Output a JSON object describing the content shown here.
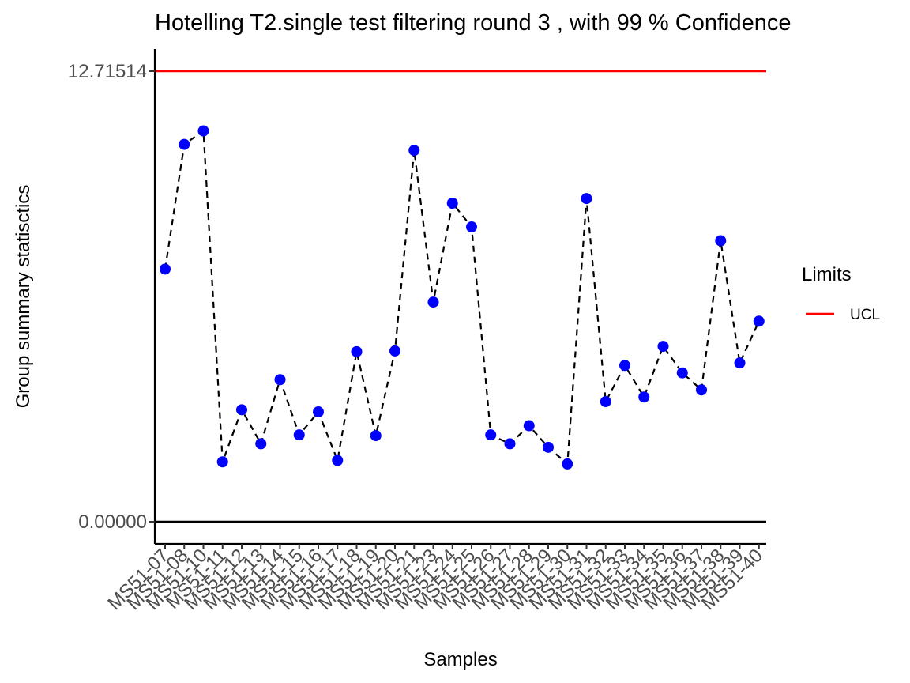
{
  "chart_data": {
    "type": "line",
    "title": "Hotelling  T2.single  test filtering round  3 , with  99 % Confidence",
    "xlabel": "Samples",
    "ylabel": "Group summary statisctics",
    "categories": [
      "MS51-07",
      "MS51-08",
      "MS51-10",
      "MS51-11",
      "MS51-12",
      "MS51-13",
      "MS51-14",
      "MS51-15",
      "MS51-16",
      "MS51-17",
      "MS51-18",
      "MS51-19",
      "MS51-20",
      "MS51-21",
      "MS51-23",
      "MS51-24",
      "MS51-25",
      "MS51-26",
      "MS51-27",
      "MS51-28",
      "MS51-29",
      "MS51-30",
      "MS51-31",
      "MS51-32",
      "MS51-33",
      "MS51-34",
      "MS51-35",
      "MS51-36",
      "MS51-37",
      "MS51-38",
      "MS51-39",
      "MS51-40"
    ],
    "series": [
      {
        "values": [
          7.13,
          10.65,
          11.03,
          1.69,
          3.16,
          2.2,
          4.01,
          2.45,
          3.1,
          1.73,
          4.8,
          2.43,
          4.82,
          10.48,
          6.2,
          8.99,
          8.32,
          2.45,
          2.2,
          2.71,
          2.1,
          1.63,
          9.12,
          3.39,
          4.41,
          3.52,
          4.95,
          4.2,
          3.72,
          7.93,
          4.48,
          5.66
        ]
      }
    ],
    "ucl": 12.71514,
    "yticks": [
      "0.00000",
      "12.71514"
    ],
    "ylim": [
      -0.62,
      13.3
    ],
    "legend": {
      "title": "Limits",
      "entries": [
        {
          "label": "UCL",
          "color": "#ff0000"
        }
      ],
      "position": "right"
    },
    "colors": {
      "points": "#0000ff",
      "line": "#000000",
      "ucl": "#ff0000",
      "zero": "#000000"
    },
    "grid": false
  }
}
